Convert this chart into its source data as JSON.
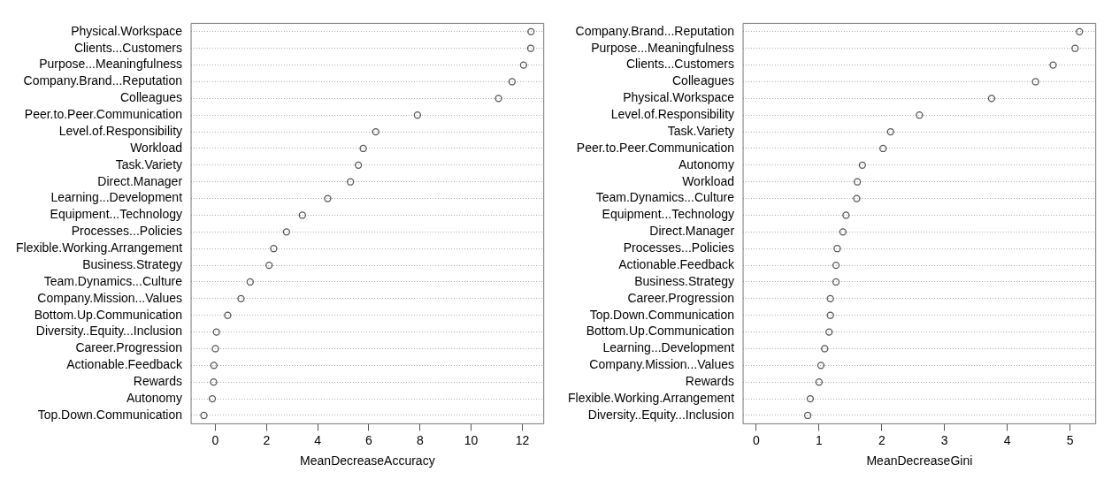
{
  "chart_data": [
    {
      "type": "scatter",
      "orientation": "horizontal",
      "marker": "circle",
      "grid": "y",
      "color": "#555555",
      "xlabel": "MeanDecreaseAccuracy",
      "xlim": [
        -0.95,
        12.84
      ],
      "xticks": [
        0,
        2,
        4,
        6,
        8,
        10,
        12
      ],
      "categories": [
        "Physical.Workspace",
        "Clients...Customers",
        "Purpose...Meaningfulness",
        "Company.Brand...Reputation",
        "Colleagues",
        "Peer.to.Peer.Communication",
        "Level.of.Responsibility",
        "Workload",
        "Task.Variety",
        "Direct.Manager",
        "Learning...Development",
        "Equipment...Technology",
        "Processes...Policies",
        "Flexible.Working.Arrangement",
        "Business.Strategy",
        "Team.Dynamics...Culture",
        "Company.Mission...Values",
        "Bottom.Up.Communication",
        "Diversity..Equity...Inclusion",
        "Career.Progression",
        "Actionable.Feedback",
        "Rewards",
        "Autonomy",
        "Top.Down.Communication"
      ],
      "values": [
        12.34,
        12.33,
        12.05,
        11.6,
        11.07,
        7.9,
        6.27,
        5.78,
        5.59,
        5.28,
        4.39,
        3.4,
        2.78,
        2.28,
        2.1,
        1.36,
        1.0,
        0.48,
        0.04,
        0.0,
        -0.06,
        -0.07,
        -0.12,
        -0.45
      ]
    },
    {
      "type": "scatter",
      "orientation": "horizontal",
      "marker": "circle",
      "grid": "y",
      "color": "#555555",
      "xlabel": "MeanDecreaseGini",
      "xlim": [
        -0.21,
        5.41
      ],
      "xticks": [
        0,
        1,
        2,
        3,
        4,
        5
      ],
      "categories": [
        "Company.Brand...Reputation",
        "Purpose...Meaningfulness",
        "Clients...Customers",
        "Colleagues",
        "Physical.Workspace",
        "Level.of.Responsibility",
        "Task.Variety",
        "Peer.to.Peer.Communication",
        "Autonomy",
        "Workload",
        "Team.Dynamics...Culture",
        "Equipment...Technology",
        "Direct.Manager",
        "Processes...Policies",
        "Actionable.Feedback",
        "Business.Strategy",
        "Career.Progression",
        "Top.Down.Communication",
        "Bottom.Up.Communication",
        "Learning...Development",
        "Company.Mission...Values",
        "Rewards",
        "Flexible.Working.Arrangement",
        "Diversity..Equity...Inclusion"
      ],
      "values": [
        5.15,
        5.08,
        4.73,
        4.45,
        3.75,
        2.6,
        2.14,
        2.02,
        1.69,
        1.61,
        1.6,
        1.43,
        1.38,
        1.29,
        1.27,
        1.27,
        1.18,
        1.18,
        1.16,
        1.09,
        1.03,
        1.0,
        0.86,
        0.82
      ]
    }
  ]
}
